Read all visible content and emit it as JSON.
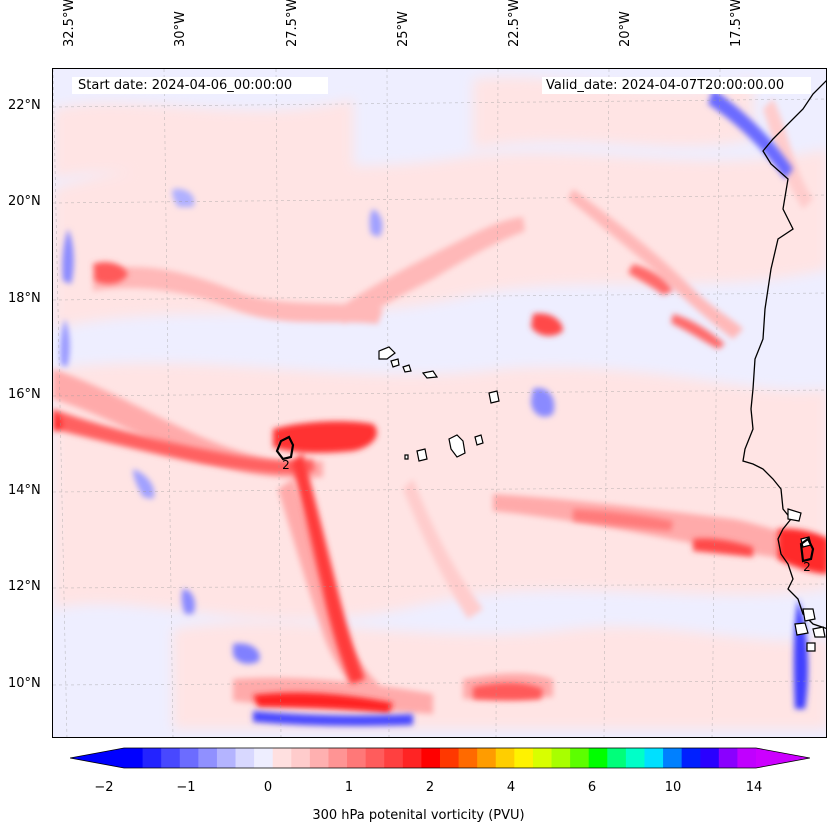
{
  "map": {
    "lon_ticks": [
      "32.5°W",
      "30°W",
      "27.5°W",
      "25°W",
      "22.5°W",
      "20°W",
      "17.5°W"
    ],
    "lat_ticks": [
      "22°N",
      "20°N",
      "18°N",
      "16°N",
      "14°N",
      "12°N",
      "10°N"
    ],
    "start_date": "Start date: 2024-04-06_00:00:00",
    "valid_date": "Valid_date: 2024-04-07T20:00:00.00",
    "contour_labels": [
      "2",
      "2"
    ]
  },
  "colorbar": {
    "ticks": [
      "−2",
      "−1",
      "0",
      "1",
      "2",
      "4",
      "6",
      "10",
      "14"
    ],
    "label": "300 hPa potenital vorticity (PVU)",
    "colors": [
      "#0000ff",
      "#2323ff",
      "#4848ff",
      "#6c6cff",
      "#9090ff",
      "#b4b4ff",
      "#d8d8ff",
      "#eeeeff",
      "#ffe0e0",
      "#ffcccc",
      "#ffb0b0",
      "#ff9494",
      "#ff7878",
      "#ff5c5c",
      "#ff4040",
      "#ff2424",
      "#ff0000",
      "#ff3800",
      "#ff6a00",
      "#ff9c00",
      "#ffce00",
      "#fff200",
      "#d8ff00",
      "#a8ff00",
      "#5cff00",
      "#00ff00",
      "#00ff7a",
      "#00ffc8",
      "#00e0ff",
      "#0080ff",
      "#0020ff",
      "#2a00ff",
      "#8a00ff",
      "#c000ff"
    ],
    "under_color": "#0000ff",
    "over_color": "#cc00ff"
  }
}
